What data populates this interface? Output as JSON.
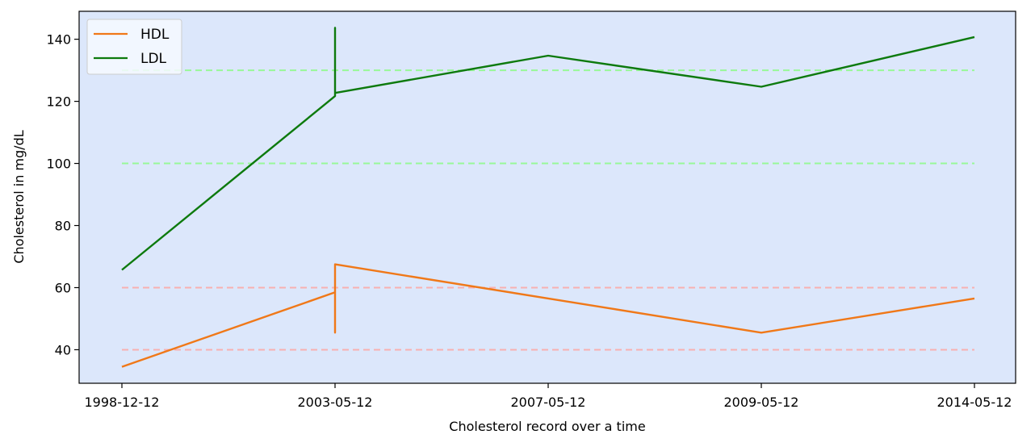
{
  "chart_data": {
    "type": "line",
    "title": "",
    "xlabel": "Cholesterol record over a time",
    "ylabel": "Cholesterol in mg/dL",
    "ylim": [
      29.2,
      149
    ],
    "yticks": [
      40,
      60,
      80,
      100,
      120,
      140
    ],
    "categories": [
      "1998-12-12",
      "2003-05-12",
      "2007-05-12",
      "2009-05-12",
      "2014-05-12"
    ],
    "grid": false,
    "legend_position": "upper-left",
    "background_color": "#dce7fb",
    "series": [
      {
        "name": "HDL",
        "color": "#f07818",
        "points": [
          {
            "x": 0,
            "y": 34.5
          },
          {
            "x": 1,
            "y": 58.5
          },
          {
            "x": 1,
            "y": 45.5
          },
          {
            "x": 1,
            "y": 67.5
          },
          {
            "x": 2,
            "y": 56.5
          },
          {
            "x": 3,
            "y": 45.5
          },
          {
            "x": 4,
            "y": 56.5
          }
        ]
      },
      {
        "name": "LDL",
        "color": "#0d7a0d",
        "points": [
          {
            "x": 0,
            "y": 65.7
          },
          {
            "x": 1,
            "y": 121.7
          },
          {
            "x": 1,
            "y": 143.7
          },
          {
            "x": 1,
            "y": 122.7
          },
          {
            "x": 2,
            "y": 134.7
          },
          {
            "x": 3,
            "y": 124.7
          },
          {
            "x": 4,
            "y": 140.7
          }
        ]
      }
    ],
    "reference_lines": [
      {
        "y": 130,
        "color": "#98f898",
        "style": "dashed"
      },
      {
        "y": 100,
        "color": "#98f898",
        "style": "dashed"
      },
      {
        "y": 60,
        "color": "#f8b0b0",
        "style": "dashed"
      },
      {
        "y": 40,
        "color": "#f8b0b0",
        "style": "dashed"
      }
    ]
  }
}
